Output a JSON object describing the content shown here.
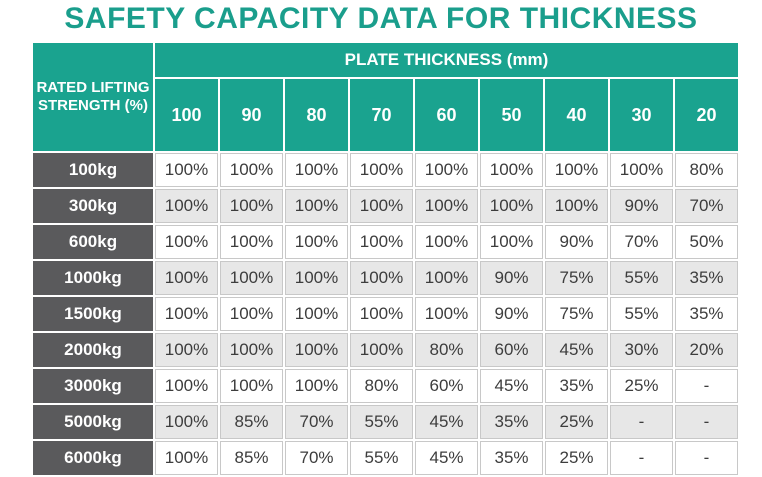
{
  "title": "SAFETY CAPACITY DATA FOR THICKNESS",
  "table": {
    "corner_label": "RATED LIFTING STRENGTH (%)",
    "group_label": "PLATE THICKNESS (mm)",
    "columns": [
      "100",
      "90",
      "80",
      "70",
      "60",
      "50",
      "40",
      "30",
      "20"
    ],
    "rows": [
      {
        "label": "100kg",
        "values": [
          "100%",
          "100%",
          "100%",
          "100%",
          "100%",
          "100%",
          "100%",
          "100%",
          "80%"
        ]
      },
      {
        "label": "300kg",
        "values": [
          "100%",
          "100%",
          "100%",
          "100%",
          "100%",
          "100%",
          "100%",
          "90%",
          "70%"
        ]
      },
      {
        "label": "600kg",
        "values": [
          "100%",
          "100%",
          "100%",
          "100%",
          "100%",
          "100%",
          "90%",
          "70%",
          "50%"
        ]
      },
      {
        "label": "1000kg",
        "values": [
          "100%",
          "100%",
          "100%",
          "100%",
          "100%",
          "90%",
          "75%",
          "55%",
          "35%"
        ]
      },
      {
        "label": "1500kg",
        "values": [
          "100%",
          "100%",
          "100%",
          "100%",
          "100%",
          "90%",
          "75%",
          "55%",
          "35%"
        ]
      },
      {
        "label": "2000kg",
        "values": [
          "100%",
          "100%",
          "100%",
          "100%",
          "80%",
          "60%",
          "45%",
          "30%",
          "20%"
        ]
      },
      {
        "label": "3000kg",
        "values": [
          "100%",
          "100%",
          "100%",
          "80%",
          "60%",
          "45%",
          "35%",
          "25%",
          "-"
        ]
      },
      {
        "label": "5000kg",
        "values": [
          "100%",
          "85%",
          "70%",
          "55%",
          "45%",
          "35%",
          "25%",
          "-",
          "-"
        ]
      },
      {
        "label": "6000kg",
        "values": [
          "100%",
          "85%",
          "70%",
          "55%",
          "45%",
          "35%",
          "25%",
          "-",
          "-"
        ]
      }
    ]
  },
  "colors": {
    "title": "#1a9e8c",
    "header_bg": "#1aa38f",
    "row_label_bg": "#5a5a5c",
    "alt_row_bg": "#e7e7e7"
  }
}
